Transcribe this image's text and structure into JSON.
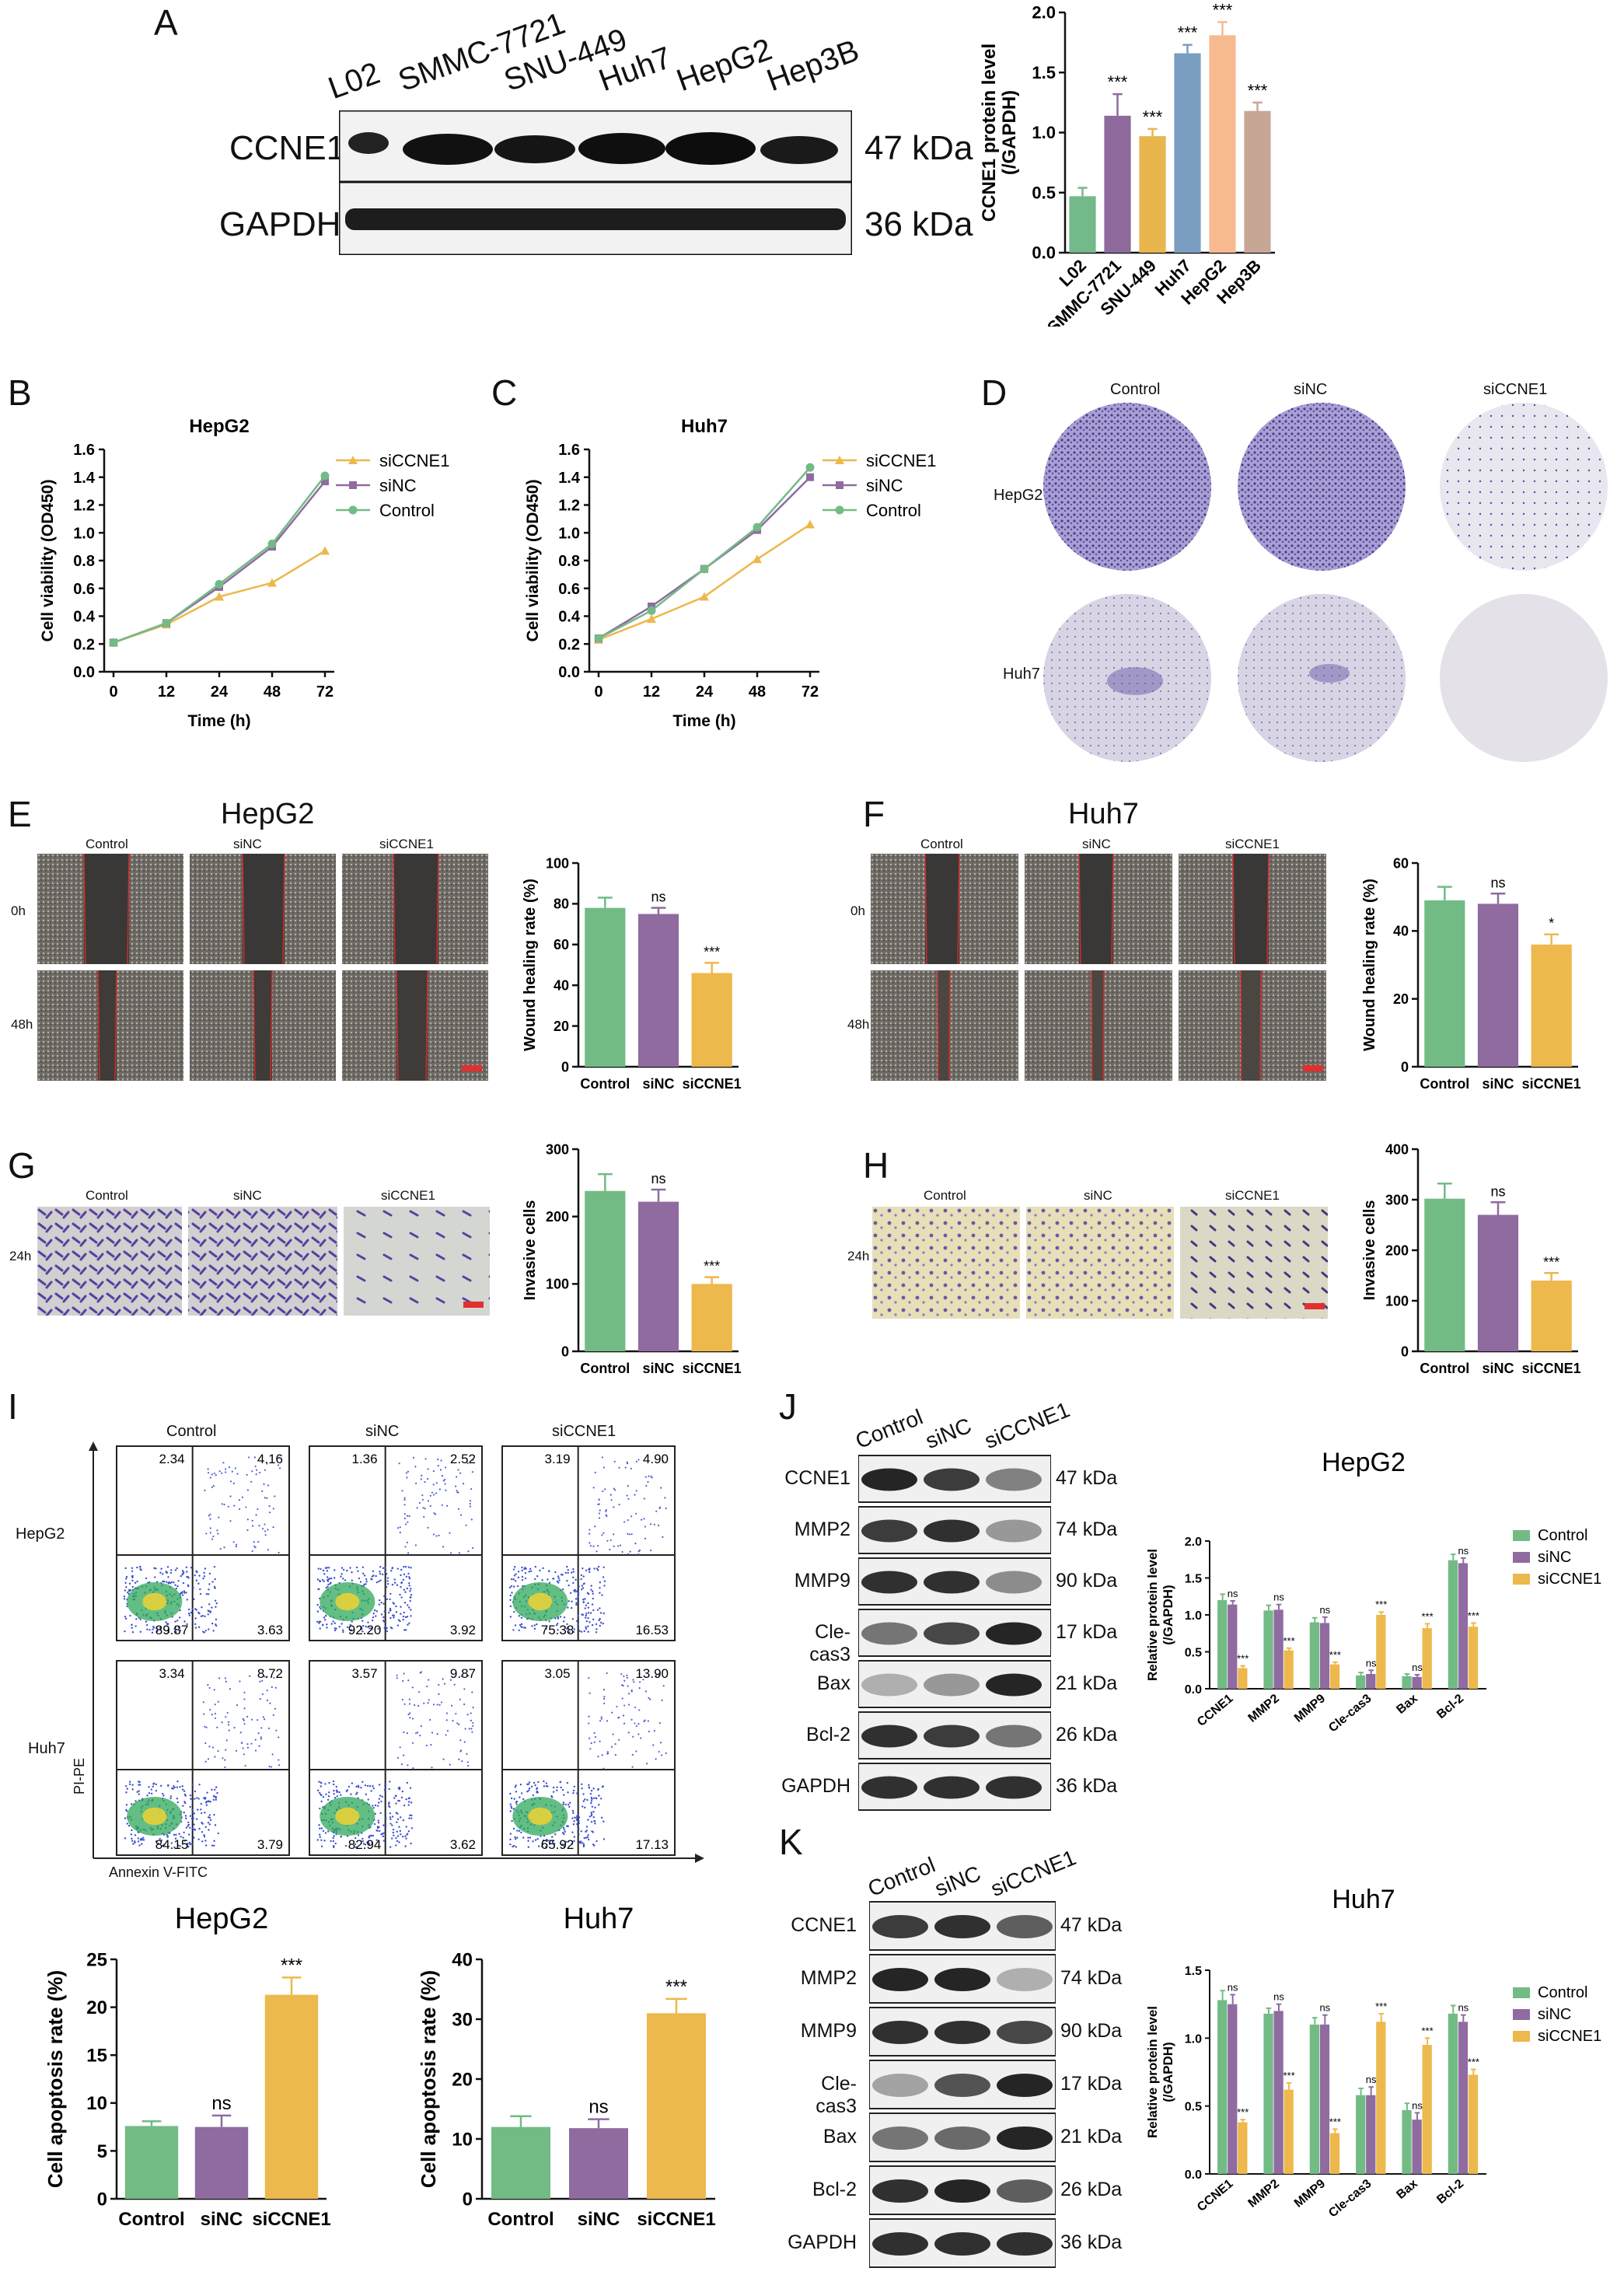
{
  "panel_letters": [
    "A",
    "B",
    "C",
    "D",
    "E",
    "F",
    "G",
    "H",
    "I",
    "J",
    "K"
  ],
  "colors": {
    "l02": "#74b98a",
    "smmc": "#8d6a9b",
    "snu": "#e9b54d",
    "huh7": "#7a9ec1",
    "hepg2": "#f7b98f",
    "hep3b": "#c8a696",
    "control": "#72bb85",
    "sinc": "#8f6ba0",
    "siccne1": "#edb84c",
    "blot_bg": "#f1f1f1",
    "crystal_violet": "#6b5aa8"
  },
  "panelA": {
    "lane_labels": [
      "L02",
      "SMMC-7721",
      "SNU-449",
      "Huh7",
      "HepG2",
      "Hep3B"
    ],
    "row_labels": [
      "CCNE1",
      "GAPDH"
    ],
    "kda_labels": [
      "47 kDa",
      "36 kDa"
    ]
  },
  "panelD": {
    "col_labels": [
      "Control",
      "siNC",
      "siCCNE1"
    ],
    "row_labels": [
      "HepG2",
      "Huh7"
    ]
  },
  "panelE": {
    "title": "HepG2",
    "col_labels": [
      "Control",
      "siNC",
      "siCCNE1"
    ],
    "row_labels": [
      "0h",
      "48h"
    ]
  },
  "panelF": {
    "title": "Huh7",
    "col_labels": [
      "Control",
      "siNC",
      "siCCNE1"
    ],
    "row_labels": [
      "0h",
      "48h"
    ]
  },
  "panelG": {
    "col_labels": [
      "Control",
      "siNC",
      "siCCNE1"
    ],
    "row_label": "24h"
  },
  "panelH": {
    "col_labels": [
      "Control",
      "siNC",
      "siCCNE1"
    ],
    "row_label": "24h"
  },
  "panelI": {
    "col_labels": [
      "Control",
      "siNC",
      "siCCNE1"
    ],
    "row_labels": [
      "HepG2",
      "Huh7"
    ],
    "y_axis": "PI-PE",
    "x_axis": "Annexin V-FITC",
    "quadrants": [
      [
        [
          "2.34",
          "4.16",
          "89.87",
          "3.63"
        ],
        [
          "1.36",
          "2.52",
          "92.20",
          "3.92"
        ],
        [
          "3.19",
          "4.90",
          "75.38",
          "16.53"
        ]
      ],
      [
        [
          "3.34",
          "8.72",
          "84.15",
          "3.79"
        ],
        [
          "3.57",
          "9.87",
          "82.94",
          "3.62"
        ],
        [
          "3.05",
          "13.90",
          "65.92",
          "17.13"
        ]
      ]
    ]
  },
  "panelJ": {
    "lane_labels": [
      "Control",
      "siNC",
      "siCCNE1"
    ],
    "row_labels": [
      "CCNE1",
      "MMP2",
      "MMP9",
      "Cle-cas3",
      "Bax",
      "Bcl-2",
      "GAPDH"
    ],
    "kda_labels": [
      "47 kDa",
      "74 kDa",
      "90 kDa",
      "17 kDa",
      "21 kDa",
      "26 kDa",
      "36 kDa"
    ]
  },
  "panelK": {
    "lane_labels": [
      "Control",
      "siNC",
      "siCCNE1"
    ],
    "row_labels": [
      "CCNE1",
      "MMP2",
      "MMP9",
      "Cle-cas3",
      "Bax",
      "Bcl-2",
      "GAPDH"
    ],
    "kda_labels": [
      "47 kDa",
      "74 kDa",
      "90 kDa",
      "17 kDa",
      "21 kDa",
      "26 kDa",
      "36 kDa"
    ]
  },
  "chart_data": [
    {
      "id": "A_bar",
      "type": "bar",
      "categories": [
        "L02",
        "SMMC-7721",
        "SNU-449",
        "Huh7",
        "HepG2",
        "Hep3B"
      ],
      "values": [
        0.47,
        1.14,
        0.97,
        1.66,
        1.81,
        1.18
      ],
      "errors": [
        0.07,
        0.18,
        0.06,
        0.07,
        0.11,
        0.07
      ],
      "sig": [
        "",
        "***",
        "***",
        "***",
        "***",
        "***"
      ],
      "colors": [
        "#74b98a",
        "#8d6a9b",
        "#e9b54d",
        "#7a9ec1",
        "#f7b98f",
        "#c8a696"
      ],
      "ylabel": "CCNE1 protein level\n(/GAPDH)",
      "ylim": [
        0,
        2.0
      ],
      "yticks": [
        "0.0",
        "0.5",
        "1.0",
        "1.5",
        "2.0"
      ]
    },
    {
      "id": "B_line",
      "type": "line",
      "title": "HepG2",
      "x": [
        0,
        12,
        24,
        48,
        72
      ],
      "xticks": [
        "0",
        "12",
        "24",
        "48",
        "72"
      ],
      "xlabel": "Time (h)",
      "ylabel": "Cell viability (OD450)",
      "ylim": [
        0,
        1.6
      ],
      "yticks": [
        "0.0",
        "0.2",
        "0.4",
        "0.6",
        "0.8",
        "1.0",
        "1.2",
        "1.4",
        "1.6"
      ],
      "series": [
        {
          "name": "siCCNE1",
          "color": "#edb84c",
          "values": [
            0.21,
            0.34,
            0.54,
            0.64,
            0.87
          ],
          "marker": "tri"
        },
        {
          "name": "siNC",
          "color": "#8f6ba0",
          "values": [
            0.21,
            0.35,
            0.61,
            0.9,
            1.37
          ],
          "marker": "sq"
        },
        {
          "name": "Control",
          "color": "#72bb85",
          "values": [
            0.21,
            0.35,
            0.63,
            0.92,
            1.41
          ],
          "marker": "dot"
        }
      ]
    },
    {
      "id": "C_line",
      "type": "line",
      "title": "Huh7",
      "x": [
        0,
        12,
        24,
        48,
        72
      ],
      "xticks": [
        "0",
        "12",
        "24",
        "48",
        "72"
      ],
      "xlabel": "Time (h)",
      "ylabel": "Cell viability (OD450)",
      "ylim": [
        0,
        1.6
      ],
      "yticks": [
        "0.0",
        "0.2",
        "0.4",
        "0.6",
        "0.8",
        "1.0",
        "1.2",
        "1.4",
        "1.6"
      ],
      "series": [
        {
          "name": "siCCNE1",
          "color": "#edb84c",
          "values": [
            0.23,
            0.38,
            0.54,
            0.81,
            1.06
          ],
          "marker": "tri"
        },
        {
          "name": "siNC",
          "color": "#8f6ba0",
          "values": [
            0.24,
            0.47,
            0.74,
            1.02,
            1.4
          ],
          "marker": "sq"
        },
        {
          "name": "Control",
          "color": "#72bb85",
          "values": [
            0.24,
            0.44,
            0.74,
            1.04,
            1.47
          ],
          "marker": "dot"
        }
      ]
    },
    {
      "id": "E_bar",
      "type": "bar",
      "categories": [
        "Control",
        "siNC",
        "siCCNE1"
      ],
      "values": [
        78,
        75,
        46
      ],
      "errors": [
        5,
        3,
        5
      ],
      "sig": [
        "",
        "ns",
        "***"
      ],
      "colors": [
        "#72bb85",
        "#8f6ba0",
        "#edb84c"
      ],
      "ylabel": "Wound healing rate (%)",
      "ylim": [
        0,
        100
      ],
      "yticks": [
        "0",
        "20",
        "40",
        "60",
        "80",
        "100"
      ]
    },
    {
      "id": "F_bar",
      "type": "bar",
      "categories": [
        "Control",
        "siNC",
        "siCCNE1"
      ],
      "values": [
        49,
        48,
        36
      ],
      "errors": [
        4,
        3,
        3
      ],
      "sig": [
        "",
        "ns",
        "*"
      ],
      "colors": [
        "#72bb85",
        "#8f6ba0",
        "#edb84c"
      ],
      "ylabel": "Wound healing rate (%)",
      "ylim": [
        0,
        60
      ],
      "yticks": [
        "0",
        "20",
        "40",
        "60"
      ]
    },
    {
      "id": "G_bar",
      "type": "bar",
      "categories": [
        "Control",
        "siNC",
        "siCCNE1"
      ],
      "values": [
        238,
        222,
        100
      ],
      "errors": [
        25,
        18,
        10
      ],
      "sig": [
        "",
        "ns",
        "***"
      ],
      "colors": [
        "#72bb85",
        "#8f6ba0",
        "#edb84c"
      ],
      "ylabel": "Invasive cells",
      "ylim": [
        0,
        300
      ],
      "yticks": [
        "0",
        "100",
        "200",
        "300"
      ]
    },
    {
      "id": "H_bar",
      "type": "bar",
      "categories": [
        "Control",
        "siNC",
        "siCCNE1"
      ],
      "values": [
        302,
        270,
        140
      ],
      "errors": [
        30,
        25,
        15
      ],
      "sig": [
        "",
        "ns",
        "***"
      ],
      "colors": [
        "#72bb85",
        "#8f6ba0",
        "#edb84c"
      ],
      "ylabel": "Invasive cells",
      "ylim": [
        0,
        400
      ],
      "yticks": [
        "0",
        "100",
        "200",
        "300",
        "400"
      ]
    },
    {
      "id": "I_bar_hepg2",
      "type": "bar",
      "title": "HepG2",
      "categories": [
        "Control",
        "siNC",
        "siCCNE1"
      ],
      "values": [
        7.6,
        7.5,
        21.3
      ],
      "errors": [
        0.5,
        1.2,
        1.8
      ],
      "sig": [
        "",
        "ns",
        "***"
      ],
      "colors": [
        "#72bb85",
        "#8f6ba0",
        "#edb84c"
      ],
      "ylabel": "Cell apoptosis rate (%)",
      "ylim": [
        0,
        25
      ],
      "yticks": [
        "0",
        "5",
        "10",
        "15",
        "20",
        "25"
      ]
    },
    {
      "id": "I_bar_huh7",
      "type": "bar",
      "title": "Huh7",
      "categories": [
        "Control",
        "siNC",
        "siCCNE1"
      ],
      "values": [
        12.0,
        11.8,
        31.0
      ],
      "errors": [
        1.8,
        1.5,
        2.4
      ],
      "sig": [
        "",
        "ns",
        "***"
      ],
      "colors": [
        "#72bb85",
        "#8f6ba0",
        "#edb84c"
      ],
      "ylabel": "Cell apoptosis rate (%)",
      "ylim": [
        0,
        40
      ],
      "yticks": [
        "0",
        "10",
        "20",
        "30",
        "40"
      ]
    },
    {
      "id": "J_grouped",
      "type": "bar",
      "title": "HepG2",
      "categories": [
        "CCNE1",
        "MMP2",
        "MMP9",
        "Cle-cas3",
        "Bax",
        "Bcl-2"
      ],
      "ylabel": "Relative protein level\n(/GAPDH)",
      "ylim": [
        0,
        2.0
      ],
      "yticks": [
        "0.0",
        "0.5",
        "1.0",
        "1.5",
        "2.0"
      ],
      "legend": "top-right",
      "series": [
        {
          "name": "Control",
          "color": "#72bb85",
          "values": [
            1.2,
            1.06,
            0.9,
            0.18,
            0.17,
            1.74
          ],
          "errors": [
            0.08,
            0.07,
            0.06,
            0.04,
            0.03,
            0.08
          ],
          "sig": [
            "",
            "",
            "",
            "",
            "",
            ""
          ]
        },
        {
          "name": "siNC",
          "color": "#8f6ba0",
          "values": [
            1.14,
            1.07,
            0.89,
            0.2,
            0.16,
            1.7
          ],
          "errors": [
            0.05,
            0.07,
            0.08,
            0.05,
            0.03,
            0.07
          ],
          "sig": [
            "ns",
            "ns",
            "ns",
            "ns",
            "ns",
            "ns"
          ]
        },
        {
          "name": "siCCNE1",
          "color": "#edb84c",
          "values": [
            0.28,
            0.52,
            0.33,
            1.0,
            0.82,
            0.84
          ],
          "errors": [
            0.03,
            0.03,
            0.03,
            0.04,
            0.06,
            0.05
          ],
          "sig": [
            "***",
            "***",
            "***",
            "***",
            "***",
            "***"
          ]
        }
      ]
    },
    {
      "id": "K_grouped",
      "type": "bar",
      "title": "Huh7",
      "categories": [
        "CCNE1",
        "MMP2",
        "MMP9",
        "Cle-cas3",
        "Bax",
        "Bcl-2"
      ],
      "ylabel": "Relative protein level\n(/GAPDH)",
      "ylim": [
        0,
        1.5
      ],
      "yticks": [
        "0.0",
        "0.5",
        "1.0",
        "1.5"
      ],
      "legend": "top-right",
      "series": [
        {
          "name": "Control",
          "color": "#72bb85",
          "values": [
            1.28,
            1.18,
            1.1,
            0.58,
            0.47,
            1.18
          ],
          "errors": [
            0.07,
            0.04,
            0.05,
            0.05,
            0.05,
            0.06
          ],
          "sig": [
            "",
            "",
            "",
            "",
            "",
            ""
          ]
        },
        {
          "name": "siNC",
          "color": "#8f6ba0",
          "values": [
            1.25,
            1.2,
            1.1,
            0.58,
            0.4,
            1.12
          ],
          "errors": [
            0.07,
            0.05,
            0.07,
            0.06,
            0.05,
            0.05
          ],
          "sig": [
            "ns",
            "ns",
            "ns",
            "ns",
            "ns",
            "ns"
          ]
        },
        {
          "name": "siCCNE1",
          "color": "#edb84c",
          "values": [
            0.38,
            0.62,
            0.3,
            1.12,
            0.95,
            0.73
          ],
          "errors": [
            0.02,
            0.05,
            0.03,
            0.06,
            0.05,
            0.04
          ],
          "sig": [
            "***",
            "***",
            "***",
            "***",
            "***",
            "***"
          ]
        }
      ]
    }
  ]
}
